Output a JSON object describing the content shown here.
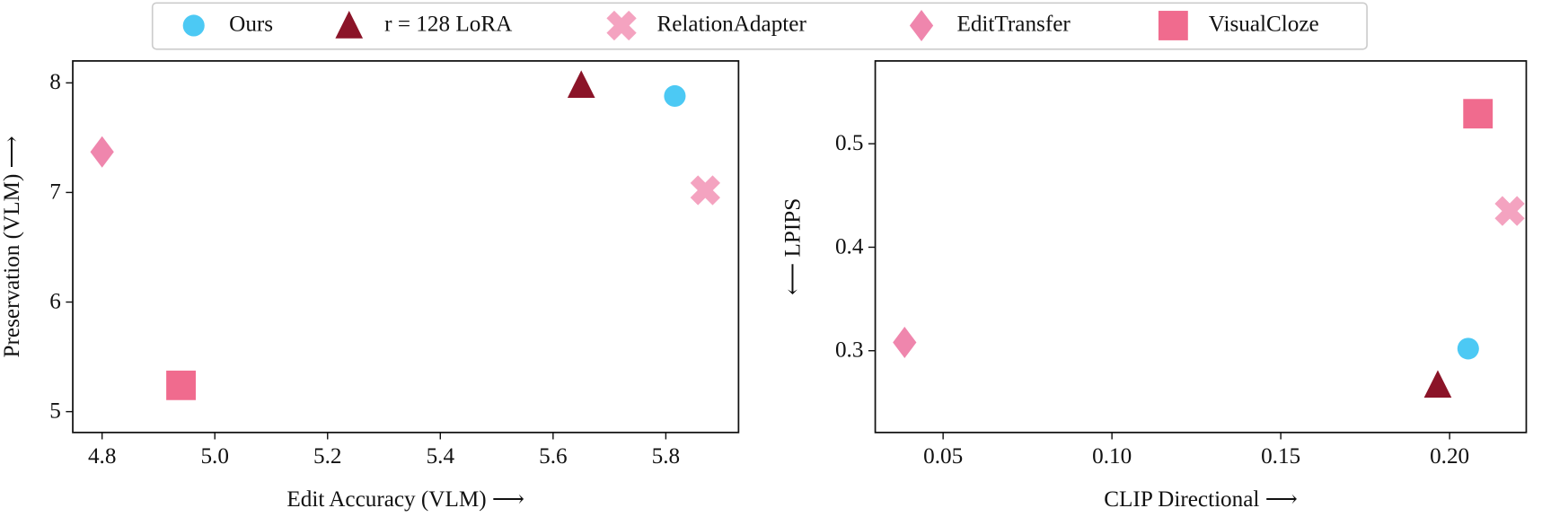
{
  "chart_data": [
    {
      "type": "scatter",
      "xlabel": "Edit Accuracy (VLM) ⟶",
      "ylabel": "Preservation (VLM) ⟶",
      "xlim": [
        4.748,
        5.929
      ],
      "ylim": [
        4.81,
        8.2
      ],
      "xticks": [
        4.8,
        {
          "value": 5,
          "label": "5.0"
        },
        5.2,
        5.4,
        5.6,
        5.8
      ],
      "yticks": [
        5,
        6,
        7,
        8
      ],
      "legend": "top-center",
      "series": [
        {
          "name": "Ours",
          "color": "#4cc9f4",
          "marker": "o",
          "x": [
            5.816
          ],
          "values": [
            7.88
          ]
        },
        {
          "name": "r = 128 LoRA",
          "color": "#8b1428",
          "marker": "^",
          "x": [
            5.65
          ],
          "values": [
            7.98
          ]
        },
        {
          "name": "RelationAdapter",
          "color": "#f4a3c0",
          "marker": "X",
          "x": [
            5.87
          ],
          "values": [
            7.02
          ]
        },
        {
          "name": "EditTransfer",
          "color": "#ef86ad",
          "marker": "d",
          "x": [
            4.8
          ],
          "values": [
            7.37
          ]
        },
        {
          "name": "VisualCloze",
          "color": "#f06b8e",
          "marker": "s",
          "x": [
            4.94
          ],
          "values": [
            5.24
          ]
        }
      ]
    },
    {
      "type": "scatter",
      "xlabel": "CLIP Directional ⟶",
      "ylabel": "⟵ LPIPS",
      "xlim": [
        0.0299,
        0.2227
      ],
      "ylim": [
        0.221,
        0.58
      ],
      "xticks": [
        0.05,
        {
          "value": 0.1,
          "label": "0.10"
        },
        0.15,
        {
          "value": 0.2,
          "label": "0.20"
        }
      ],
      "yticks": [
        0.3,
        0.4,
        0.5
      ],
      "series": [
        {
          "name": "Ours",
          "color": "#4cc9f4",
          "marker": "o",
          "x": [
            0.2055
          ],
          "values": [
            0.302
          ]
        },
        {
          "name": "r = 128 LoRA",
          "color": "#8b1428",
          "marker": "^",
          "x": [
            0.1965
          ],
          "values": [
            0.267
          ]
        },
        {
          "name": "RelationAdapter",
          "color": "#f4a3c0",
          "marker": "X",
          "x": [
            0.2178
          ],
          "values": [
            0.435
          ]
        },
        {
          "name": "EditTransfer",
          "color": "#ef86ad",
          "marker": "d",
          "x": [
            0.0386
          ],
          "values": [
            0.308
          ]
        },
        {
          "name": "VisualCloze",
          "color": "#f06b8e",
          "marker": "s",
          "x": [
            0.2084
          ],
          "values": [
            0.529
          ]
        }
      ]
    }
  ]
}
